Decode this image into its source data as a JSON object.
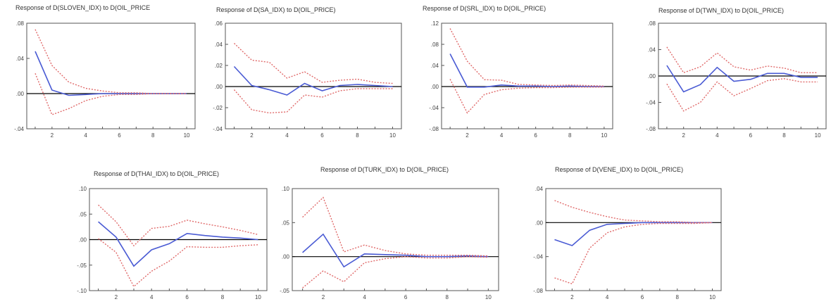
{
  "colors": {
    "response": "#4a5bd4",
    "band": "#e06a6a"
  },
  "chart_data": [
    {
      "type": "line",
      "title": "Response of D(SLOVEN_IDX) to D(OIL_PRICE",
      "ylim": [
        -0.04,
        0.08
      ],
      "yticks": [
        -0.04,
        0.0,
        0.04,
        0.08
      ],
      "ytick_labels": [
        "-.04",
        ".00",
        ".04",
        ".08"
      ],
      "xticks": [
        2,
        4,
        6,
        8,
        10
      ],
      "xtick_labels": [
        "2",
        "4",
        "6",
        "8",
        "10"
      ],
      "x": [
        1,
        2,
        3,
        4,
        5,
        6,
        7,
        8,
        9,
        10
      ],
      "series": [
        {
          "role": "response",
          "values": [
            0.048,
            0.004,
            -0.002,
            -0.001,
            0.0,
            0.0,
            0.0,
            0.0,
            0.0,
            0.0
          ]
        },
        {
          "role": "upper",
          "values": [
            0.073,
            0.032,
            0.013,
            0.006,
            0.003,
            0.001,
            0.001,
            0.0,
            0.0,
            0.0
          ]
        },
        {
          "role": "lower",
          "values": [
            0.023,
            -0.024,
            -0.017,
            -0.008,
            -0.003,
            -0.001,
            -0.001,
            0.0,
            0.0,
            0.0
          ]
        }
      ]
    },
    {
      "type": "line",
      "title": "Response of D(SA_IDX) to D(OIL_PRICE)",
      "ylim": [
        -0.04,
        0.06
      ],
      "yticks": [
        -0.04,
        -0.02,
        0.0,
        0.02,
        0.04,
        0.06
      ],
      "ytick_labels": [
        "-.04",
        "-.02",
        ".00",
        ".02",
        ".04",
        ".06"
      ],
      "xticks": [
        2,
        4,
        6,
        8,
        10
      ],
      "xtick_labels": [
        "2",
        "4",
        "6",
        "8",
        "10"
      ],
      "x": [
        1,
        2,
        3,
        4,
        5,
        6,
        7,
        8,
        9,
        10
      ],
      "series": [
        {
          "role": "response",
          "values": [
            0.019,
            0.001,
            -0.003,
            -0.008,
            0.003,
            -0.004,
            0.001,
            0.002,
            0.001,
            0.0
          ]
        },
        {
          "role": "upper",
          "values": [
            0.041,
            0.025,
            0.023,
            0.008,
            0.014,
            0.004,
            0.006,
            0.007,
            0.004,
            0.003
          ]
        },
        {
          "role": "lower",
          "values": [
            -0.003,
            -0.022,
            -0.025,
            -0.024,
            -0.008,
            -0.01,
            -0.004,
            -0.002,
            -0.002,
            -0.002
          ]
        }
      ]
    },
    {
      "type": "line",
      "title": "Response of D(SRL_IDX) to D(OIL_PRICE)",
      "ylim": [
        -0.08,
        0.12
      ],
      "yticks": [
        -0.08,
        -0.04,
        0.0,
        0.04,
        0.08,
        0.12
      ],
      "ytick_labels": [
        "-.08",
        "-.04",
        ".00",
        ".04",
        ".08",
        ".12"
      ],
      "xticks": [
        2,
        4,
        6,
        8,
        10
      ],
      "xtick_labels": [
        "2",
        "4",
        "6",
        "8",
        "10"
      ],
      "x": [
        1,
        2,
        3,
        4,
        5,
        6,
        7,
        8,
        9,
        10
      ],
      "series": [
        {
          "role": "response",
          "values": [
            0.062,
            -0.001,
            -0.001,
            0.003,
            0.001,
            0.001,
            0.0,
            0.001,
            0.0,
            0.0
          ]
        },
        {
          "role": "upper",
          "values": [
            0.11,
            0.048,
            0.013,
            0.012,
            0.004,
            0.003,
            0.002,
            0.003,
            0.002,
            0.001
          ]
        },
        {
          "role": "lower",
          "values": [
            0.014,
            -0.05,
            -0.015,
            -0.006,
            -0.003,
            -0.002,
            -0.002,
            -0.001,
            -0.001,
            -0.001
          ]
        }
      ]
    },
    {
      "type": "line",
      "title": "Response of D(TWN_IDX) to D(OIL_PRICE)",
      "ylim": [
        -0.08,
        0.08
      ],
      "yticks": [
        -0.08,
        -0.04,
        0.0,
        0.04,
        0.08
      ],
      "ytick_labels": [
        "-.08",
        "-.04",
        ".00",
        ".04",
        ".08"
      ],
      "xticks": [
        2,
        4,
        6,
        8,
        10
      ],
      "xtick_labels": [
        "2",
        "4",
        "6",
        "8",
        "10"
      ],
      "x": [
        1,
        2,
        3,
        4,
        5,
        6,
        7,
        8,
        9,
        10
      ],
      "series": [
        {
          "role": "response",
          "values": [
            0.016,
            -0.024,
            -0.013,
            0.013,
            -0.008,
            -0.005,
            0.004,
            0.004,
            -0.002,
            -0.002
          ]
        },
        {
          "role": "upper",
          "values": [
            0.044,
            0.005,
            0.014,
            0.035,
            0.014,
            0.009,
            0.015,
            0.012,
            0.005,
            0.005
          ]
        },
        {
          "role": "lower",
          "values": [
            -0.012,
            -0.053,
            -0.04,
            -0.009,
            -0.03,
            -0.019,
            -0.007,
            -0.004,
            -0.009,
            -0.009
          ]
        }
      ]
    },
    {
      "type": "line",
      "title": "Response of D(THAI_IDX) to D(OIL_PRICE)",
      "ylim": [
        -0.1,
        0.1
      ],
      "yticks": [
        -0.1,
        -0.05,
        0.0,
        0.05,
        0.1
      ],
      "ytick_labels": [
        "-.10",
        "-.05",
        ".00",
        ".05",
        ".10"
      ],
      "xticks": [
        2,
        4,
        6,
        8,
        10
      ],
      "xtick_labels": [
        "2",
        "4",
        "6",
        "8",
        "10"
      ],
      "x": [
        1,
        2,
        3,
        4,
        5,
        6,
        7,
        8,
        9,
        10
      ],
      "series": [
        {
          "role": "response",
          "values": [
            0.035,
            0.005,
            -0.052,
            -0.02,
            -0.008,
            0.012,
            0.008,
            0.005,
            0.003,
            0.0
          ]
        },
        {
          "role": "upper",
          "values": [
            0.068,
            0.035,
            -0.012,
            0.022,
            0.026,
            0.038,
            0.031,
            0.025,
            0.018,
            0.01
          ]
        },
        {
          "role": "lower",
          "values": [
            0.002,
            -0.025,
            -0.092,
            -0.062,
            -0.042,
            -0.014,
            -0.015,
            -0.015,
            -0.012,
            -0.01
          ]
        }
      ]
    },
    {
      "type": "line",
      "title": "Response of D(TURK_IDX) to D(OIL_PRICE)",
      "ylim": [
        -0.05,
        0.1
      ],
      "yticks": [
        -0.05,
        0.0,
        0.05,
        0.1
      ],
      "ytick_labels": [
        "-.05",
        ".00",
        ".05",
        ".10"
      ],
      "xticks": [
        2,
        4,
        6,
        8,
        10
      ],
      "xtick_labels": [
        "2",
        "4",
        "6",
        "8",
        "10"
      ],
      "x": [
        1,
        2,
        3,
        4,
        5,
        6,
        7,
        8,
        9,
        10
      ],
      "series": [
        {
          "role": "response",
          "values": [
            0.006,
            0.033,
            -0.015,
            0.004,
            0.003,
            0.002,
            0.0,
            0.0,
            0.001,
            0.0
          ]
        },
        {
          "role": "upper",
          "values": [
            0.058,
            0.087,
            0.007,
            0.017,
            0.009,
            0.004,
            0.002,
            0.002,
            0.002,
            0.001
          ]
        },
        {
          "role": "lower",
          "values": [
            -0.046,
            -0.021,
            -0.037,
            -0.009,
            -0.003,
            0.0,
            -0.002,
            -0.002,
            0.0,
            -0.001
          ]
        }
      ]
    },
    {
      "type": "line",
      "title": "Response of D(VENE_IDX) to D(OIL_PRICE)",
      "ylim": [
        -0.08,
        0.04
      ],
      "yticks": [
        -0.08,
        -0.04,
        0.0,
        0.04
      ],
      "ytick_labels": [
        "-.08",
        "-.04",
        ".00",
        ".04"
      ],
      "xticks": [
        2,
        4,
        6,
        8,
        10
      ],
      "xtick_labels": [
        "2",
        "4",
        "6",
        "8",
        "10"
      ],
      "x": [
        1,
        2,
        3,
        4,
        5,
        6,
        7,
        8,
        9,
        10
      ],
      "series": [
        {
          "role": "response",
          "values": [
            -0.02,
            -0.027,
            -0.009,
            -0.002,
            -0.001,
            0.0,
            0.0,
            0.0,
            0.0,
            0.0
          ]
        },
        {
          "role": "upper",
          "values": [
            0.026,
            0.018,
            0.012,
            0.007,
            0.003,
            0.002,
            0.001,
            0.001,
            0.0,
            0.0
          ]
        },
        {
          "role": "lower",
          "values": [
            -0.065,
            -0.072,
            -0.03,
            -0.012,
            -0.005,
            -0.002,
            -0.001,
            -0.001,
            -0.001,
            0.0
          ]
        }
      ]
    }
  ]
}
